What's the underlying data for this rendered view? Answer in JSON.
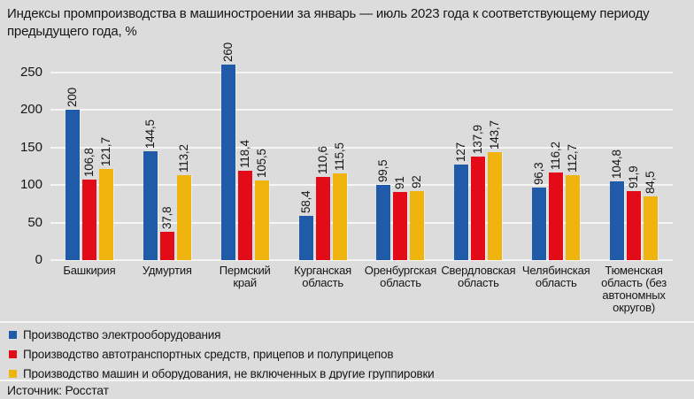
{
  "title": "Индексы промпроизводства в машиностроении за январь — июль 2023 года к соответствующему периоду предыдущего года, %",
  "source": "Источник: Росстат",
  "colors": {
    "background": "#dcdcdc",
    "grid": "#f5f5f5",
    "text": "#161616",
    "blue": "#1f5ba8",
    "red": "#e30b17",
    "yellow": "#efb40e"
  },
  "chart_data": {
    "type": "bar",
    "title": "Индексы промпроизводства в машиностроении за январь — июль 2023 года к соответствующему периоду предыдущего года, %",
    "unit": "%",
    "categories": [
      "Башкирия",
      "Удмуртия",
      "Пермский край",
      "Курганская область",
      "Оренбургская область",
      "Свердловская область",
      "Челябинская область",
      "Тюменская область (без автономных округов)"
    ],
    "category_display": [
      "Башкирия",
      "Удмуртия",
      "Пермский\nкрай",
      "Курганская\nобласть",
      "Оренбургская\nобласть",
      "Свердловская\nобласть",
      "Челябинская\nобласть",
      "Тюменская\nобласть (без\nавтономных\nокругов)"
    ],
    "series": [
      {
        "name": "Производство электрооборудования",
        "color_key": "blue",
        "values": [
          200,
          144.5,
          260,
          58.4,
          99.5,
          127,
          96.3,
          104.8
        ],
        "labels": [
          "200",
          "144,5",
          "260",
          "58,4",
          "99,5",
          "127",
          "96,3",
          "104,8"
        ]
      },
      {
        "name": "Производство автотранспортных средств, прицепов и полуприцепов",
        "color_key": "red",
        "values": [
          106.8,
          37.8,
          118.4,
          110.6,
          91,
          137.9,
          116.2,
          91.9
        ],
        "labels": [
          "106,8",
          "37,8",
          "118,4",
          "110,6",
          "91",
          "137,9",
          "116,2",
          "91,9"
        ]
      },
      {
        "name": "Производство машин и оборудования, не включенных в другие группировки",
        "color_key": "yellow",
        "values": [
          121.7,
          113.2,
          105.5,
          115.5,
          92,
          143.7,
          112.7,
          84.5
        ],
        "labels": [
          "121,7",
          "113,2",
          "105,5",
          "115,5",
          "92",
          "143,7",
          "112,7",
          "84,5"
        ]
      }
    ],
    "y_ticks": [
      0,
      50,
      100,
      150,
      200,
      250
    ],
    "ylim": [
      0,
      275
    ],
    "grid": true,
    "legend_position": "bottom"
  }
}
